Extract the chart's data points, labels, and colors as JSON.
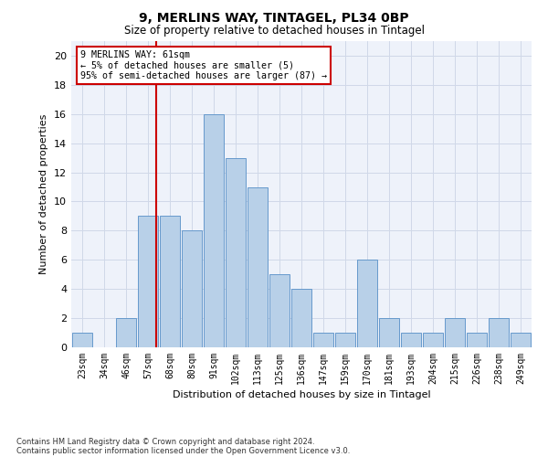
{
  "title1": "9, MERLINS WAY, TINTAGEL, PL34 0BP",
  "title2": "Size of property relative to detached houses in Tintagel",
  "xlabel": "Distribution of detached houses by size in Tintagel",
  "ylabel": "Number of detached properties",
  "bin_labels": [
    "23sqm",
    "34sqm",
    "46sqm",
    "57sqm",
    "68sqm",
    "80sqm",
    "91sqm",
    "102sqm",
    "113sqm",
    "125sqm",
    "136sqm",
    "147sqm",
    "159sqm",
    "170sqm",
    "181sqm",
    "193sqm",
    "204sqm",
    "215sqm",
    "226sqm",
    "238sqm",
    "249sqm"
  ],
  "bar_heights": [
    1,
    0,
    2,
    9,
    9,
    8,
    16,
    13,
    11,
    5,
    4,
    1,
    1,
    6,
    2,
    1,
    1,
    2,
    1,
    2,
    1
  ],
  "bar_color": "#b8d0e8",
  "bar_edge_color": "#6699cc",
  "grid_color": "#d0d8e8",
  "red_line_color": "#cc0000",
  "annotation_text": "9 MERLINS WAY: 61sqm\n← 5% of detached houses are smaller (5)\n95% of semi-detached houses are larger (87) →",
  "annotation_box_color": "#ffffff",
  "annotation_box_edge_color": "#cc0000",
  "ylim": [
    0,
    21
  ],
  "yticks": [
    0,
    2,
    4,
    6,
    8,
    10,
    12,
    14,
    16,
    18,
    20
  ],
  "footnote1": "Contains HM Land Registry data © Crown copyright and database right 2024.",
  "footnote2": "Contains public sector information licensed under the Open Government Licence v3.0.",
  "background_color": "#eef2fa",
  "red_line_bar_index": 3
}
